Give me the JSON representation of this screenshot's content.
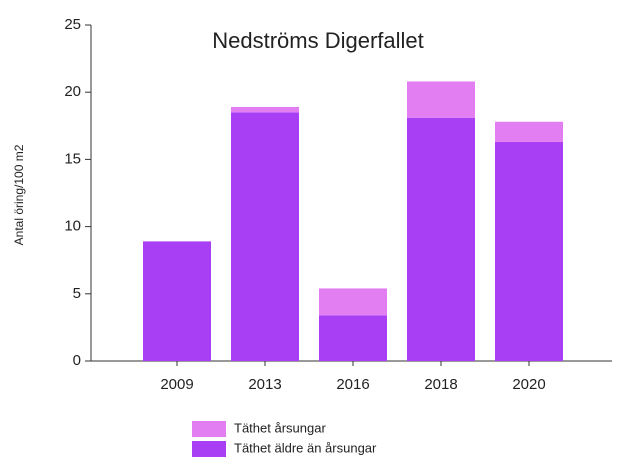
{
  "chart_data": {
    "type": "stacked_bar",
    "title": "Nedströms Digerfallet",
    "y_label": "Antal öring/100 m2",
    "categories": [
      "2009",
      "2013",
      "2016",
      "2018",
      "2020"
    ],
    "series": [
      {
        "name": "Täthet äldre än årsungar",
        "color": "#a93ff5",
        "values": [
          8.9,
          18.5,
          3.4,
          18.1,
          16.3
        ]
      },
      {
        "name": "Täthet årsungar",
        "color": "#e27ef2",
        "values": [
          0,
          0.4,
          2.0,
          2.7,
          1.5
        ]
      }
    ],
    "ylim": [
      0,
      25
    ],
    "yticks": [
      0,
      5,
      10,
      15,
      20,
      25
    ],
    "grid": false
  }
}
